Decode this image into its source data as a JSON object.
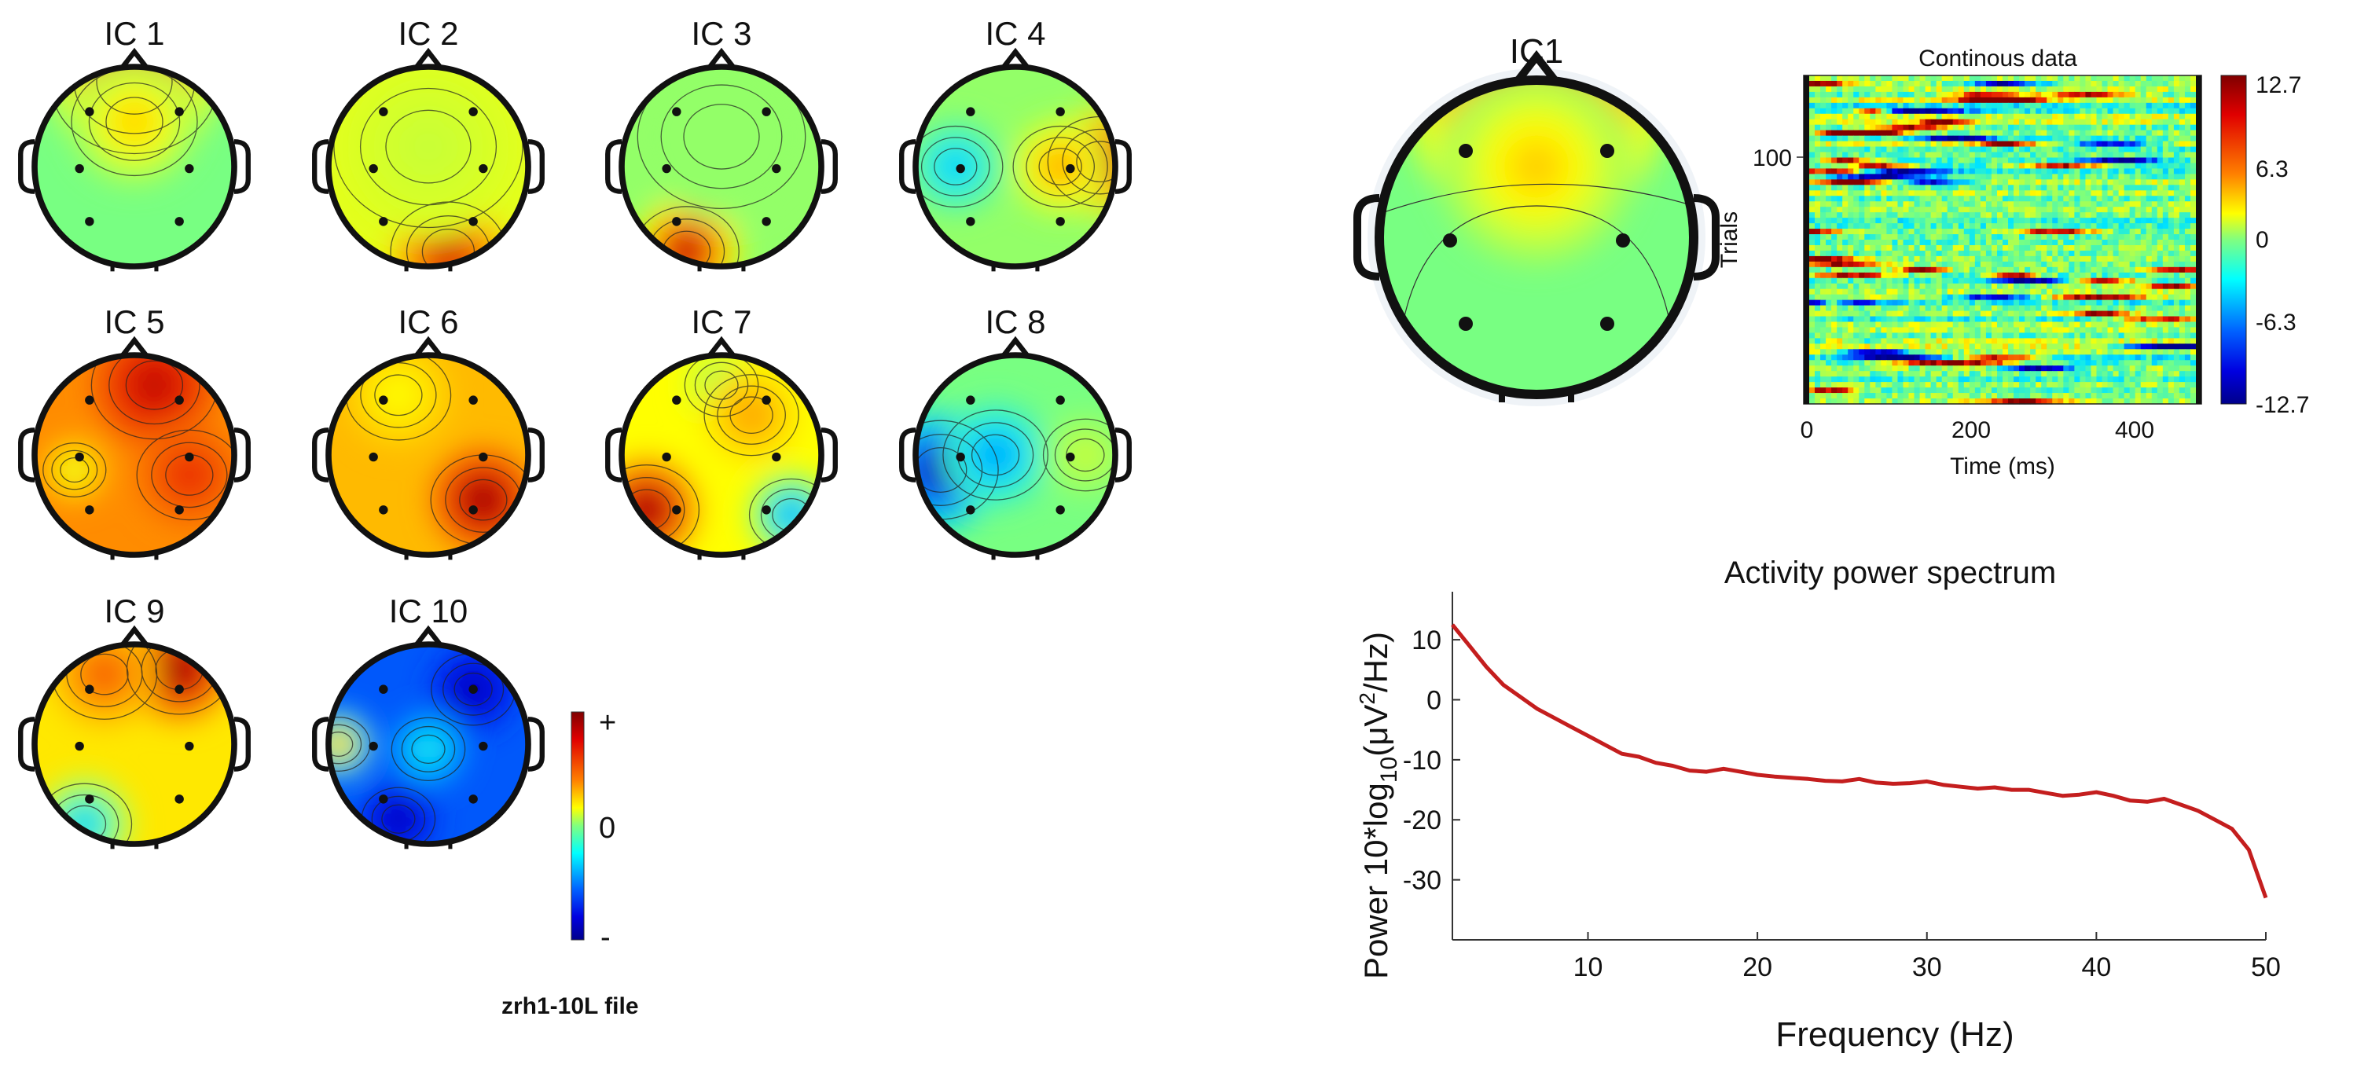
{
  "topo_grid": {
    "file_label": "zrh1-10L file",
    "colorbar": {
      "plus": "+",
      "zero": "0",
      "minus": "-"
    },
    "components": [
      {
        "label": "IC 1",
        "pattern": "frontal-positive"
      },
      {
        "label": "IC 2",
        "pattern": "posterior-positive"
      },
      {
        "label": "IC 3",
        "pattern": "left-posterior-positive"
      },
      {
        "label": "IC 4",
        "pattern": "right-positive-left-negative"
      },
      {
        "label": "IC 5",
        "pattern": "broad-positive"
      },
      {
        "label": "IC 6",
        "pattern": "right-posterior-positive"
      },
      {
        "label": "IC 7",
        "pattern": "left-positive-right-negative"
      },
      {
        "label": "IC 8",
        "pattern": "left-negative"
      },
      {
        "label": "IC 9",
        "pattern": "frontal-right-positive-posterior-negative"
      },
      {
        "label": "IC 10",
        "pattern": "mostly-negative"
      }
    ]
  },
  "ic_detail": {
    "label": "IC1",
    "erpimage": {
      "title": "Continous data",
      "xlabel": "Time (ms)",
      "ylabel": "Trials",
      "xticks": [
        "0",
        "200",
        "400"
      ],
      "yticks": [
        "100"
      ],
      "colorbar_ticks": [
        "12.7",
        "6.3",
        "0",
        "-6.3",
        "-12.7"
      ]
    }
  },
  "chart_data": {
    "type": "line",
    "title": "Activity power spectrum",
    "xlabel": "Frequency (Hz)",
    "ylabel_parts": {
      "main": "Power 10*log",
      "sub": "10",
      "mid": "(μV",
      "sup": "2",
      "end": "/Hz)"
    },
    "xlim": [
      2,
      50
    ],
    "ylim": [
      -40,
      18
    ],
    "xticks": [
      10,
      20,
      30,
      40,
      50
    ],
    "yticks": [
      10,
      0,
      -10,
      -20,
      -30
    ],
    "series": [
      {
        "name": "IC1",
        "color": "#c41e1e",
        "x": [
          2,
          3,
          4,
          5,
          6,
          7,
          8,
          9,
          10,
          11,
          12,
          13,
          14,
          15,
          16,
          17,
          18,
          19,
          20,
          21,
          22,
          23,
          24,
          25,
          26,
          27,
          28,
          29,
          30,
          31,
          32,
          33,
          34,
          35,
          36,
          37,
          38,
          39,
          40,
          41,
          42,
          43,
          44,
          45,
          46,
          47,
          48,
          49,
          50
        ],
        "y": [
          12.5,
          9.0,
          5.5,
          2.5,
          0.5,
          -1.5,
          -3.0,
          -4.5,
          -6.0,
          -7.5,
          -9.0,
          -9.5,
          -10.5,
          -11.0,
          -11.8,
          -12.0,
          -11.5,
          -12.0,
          -12.5,
          -12.8,
          -13.0,
          -13.2,
          -13.5,
          -13.6,
          -13.2,
          -13.8,
          -14.0,
          -13.9,
          -13.6,
          -14.2,
          -14.5,
          -14.8,
          -14.6,
          -15.0,
          -15.0,
          -15.5,
          -16.0,
          -15.8,
          -15.4,
          -16.0,
          -16.8,
          -17.0,
          -16.5,
          -17.5,
          -18.5,
          -20.0,
          -21.5,
          -25.0,
          -33.0
        ]
      }
    ]
  }
}
